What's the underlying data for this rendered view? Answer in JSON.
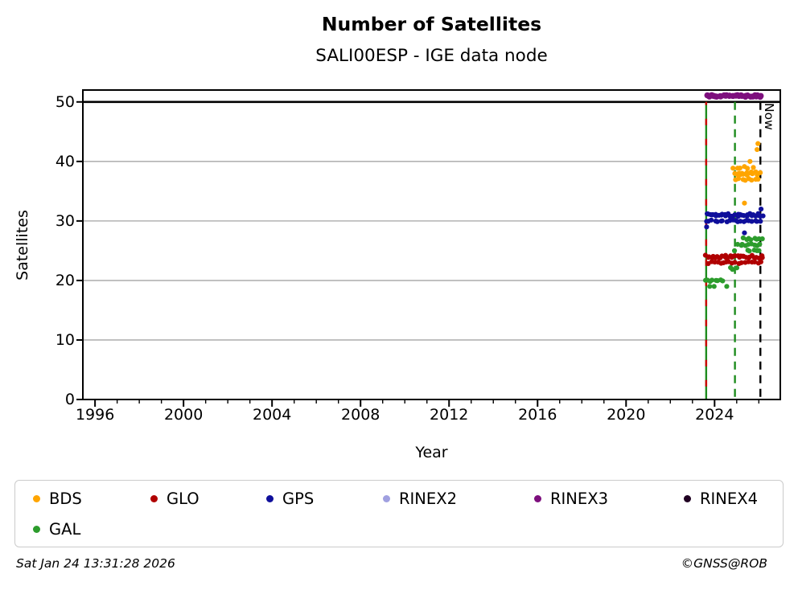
{
  "chart_data": {
    "type": "scatter",
    "title": "Number of Satellites",
    "subtitle": "SALI00ESP - IGE data node",
    "xlabel": "Year",
    "ylabel": "Satellites",
    "now_label": "Now",
    "xlim": [
      1995.45,
      2026.97
    ],
    "ylim": [
      0,
      52
    ],
    "xticks": [
      1996,
      2000,
      2004,
      2008,
      2012,
      2016,
      2020,
      2024
    ],
    "minor_xticks": {
      "start": 1996,
      "end": 2026,
      "step": 1
    },
    "yticks": [
      0,
      10,
      20,
      30,
      40,
      50
    ],
    "grid": "horizontal",
    "grid_color": "#b3b3b3",
    "grid_values": [
      10,
      20,
      30,
      40
    ],
    "hline": {
      "y": 50,
      "color": "#000000"
    },
    "vlines": [
      {
        "x": 2023.62,
        "style": "solid",
        "color": "#1e8c1e",
        "overlay_color": "#cc0000",
        "label": ""
      },
      {
        "x": 2024.92,
        "style": "dashed",
        "color": "#1e8c1e",
        "label": ""
      },
      {
        "x": 2026.07,
        "style": "dashed",
        "color": "#000000",
        "label": "Now"
      }
    ],
    "series": [
      {
        "name": "BDS",
        "color": "#ffa500",
        "clusters": [
          {
            "y": 39,
            "x1": 2024.86,
            "x2": 2025.7,
            "d": 4.0
          },
          {
            "y": 38,
            "x1": 2024.92,
            "x2": 2026.08,
            "d": 2.2,
            "jy": 2.2
          },
          {
            "y": 37,
            "x1": 2024.95,
            "x2": 2026.0,
            "d": 3.4
          }
        ],
        "points": [
          [
            2025.35,
            33
          ],
          [
            2025.6,
            40
          ],
          [
            2025.92,
            42
          ],
          [
            2025.96,
            43
          ]
        ]
      },
      {
        "name": "GLO",
        "color": "#b00000",
        "clusters": [
          {
            "y": 24,
            "x1": 2023.62,
            "x2": 2026.18,
            "d": 2.2,
            "jy": 1.8
          },
          {
            "y": 23,
            "x1": 2023.68,
            "x2": 2026.1,
            "d": 3.6
          }
        ],
        "points": []
      },
      {
        "name": "GPS",
        "color": "#0f0f9b",
        "clusters": [
          {
            "y": 31,
            "x1": 2023.62,
            "x2": 2026.18,
            "d": 2.2,
            "jy": 1.8
          },
          {
            "y": 30,
            "x1": 2023.62,
            "x2": 2026.08,
            "d": 3.4
          }
        ],
        "points": [
          [
            2023.64,
            29
          ],
          [
            2025.35,
            28
          ],
          [
            2026.1,
            32
          ]
        ]
      },
      {
        "name": "RINEX2",
        "color": "#a0a0e0",
        "clusters": [],
        "points": []
      },
      {
        "name": "RINEX3",
        "color": "#7d0f7d",
        "r": 3.8,
        "clusters": [
          {
            "y": 51,
            "x1": 2023.64,
            "x2": 2024.72,
            "d": 2.2
          },
          {
            "y": 51,
            "x1": 2024.84,
            "x2": 2026.12,
            "d": 2.2
          }
        ],
        "points": []
      },
      {
        "name": "RINEX4",
        "color": "#200022",
        "clusters": [],
        "points": []
      },
      {
        "name": "GAL",
        "color": "#2c9c2c",
        "clusters": [
          {
            "y": 20,
            "x1": 2023.62,
            "x2": 2024.35,
            "d": 2.6
          },
          {
            "y": 22,
            "x1": 2024.72,
            "x2": 2024.98,
            "d": 2.6
          },
          {
            "y": 26,
            "x1": 2025.05,
            "x2": 2026.05,
            "d": 3.0
          },
          {
            "y": 27,
            "x1": 2025.3,
            "x2": 2026.15,
            "d": 2.8
          },
          {
            "y": 25,
            "x1": 2025.45,
            "x2": 2026.05,
            "d": 3.2
          }
        ],
        "points": [
          [
            2023.78,
            19
          ],
          [
            2023.98,
            19
          ],
          [
            2024.55,
            19
          ],
          [
            2024.9,
            25
          ]
        ]
      }
    ]
  },
  "legend": {
    "items": [
      {
        "label": "BDS",
        "color": "#ffa500"
      },
      {
        "label": "GLO",
        "color": "#b00000"
      },
      {
        "label": "GPS",
        "color": "#0f0f9b"
      },
      {
        "label": "RINEX2",
        "color": "#a0a0e0"
      },
      {
        "label": "RINEX3",
        "color": "#7d0f7d"
      },
      {
        "label": "RINEX4",
        "color": "#200022"
      },
      {
        "label": "GAL",
        "color": "#2c9c2c"
      }
    ]
  },
  "footer": {
    "timestamp": "Sat Jan 24 13:31:28 2026",
    "credit": "©GNSS@ROB"
  }
}
